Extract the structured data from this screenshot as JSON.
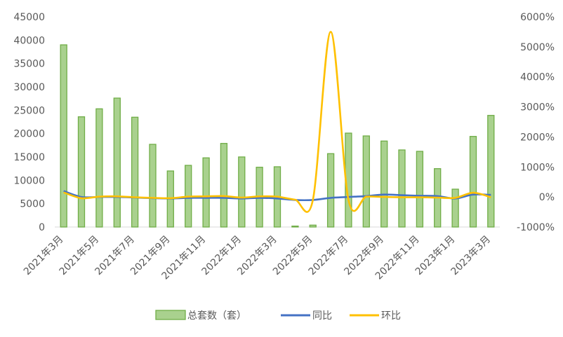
{
  "chart_data": {
    "type": "bar",
    "categories": [
      "2021年3月",
      "2021年4月",
      "2021年5月",
      "2021年6月",
      "2021年7月",
      "2021年8月",
      "2021年9月",
      "2021年10月",
      "2021年11月",
      "2021年12月",
      "2022年1月",
      "2022年2月",
      "2022年3月",
      "2022年4月",
      "2022年5月",
      "2022年6月",
      "2022年7月",
      "2022年8月",
      "2022年9月",
      "2022年10月",
      "2022年11月",
      "2022年12月",
      "2023年1月",
      "2023年2月",
      "2023年3月"
    ],
    "x_tick_labels": [
      "2021年3月",
      "2021年5月",
      "2021年7月",
      "2021年9月",
      "2021年11月",
      "2022年1月",
      "2022年3月",
      "2022年5月",
      "2022年7月",
      "2022年9月",
      "2022年11月",
      "2023年1月",
      "2023年3月"
    ],
    "series": [
      {
        "name": "总套数（套）",
        "type": "bar",
        "axis": "left",
        "color": "#a9d18e",
        "border": "#70ad47",
        "values": [
          39000,
          23600,
          25300,
          27600,
          23500,
          17700,
          12000,
          13200,
          14800,
          17900,
          15000,
          12800,
          12900,
          200,
          400,
          15700,
          20100,
          19500,
          18400,
          16500,
          16200,
          12500,
          8100,
          19400,
          23900
        ]
      },
      {
        "name": "同比",
        "type": "line",
        "axis": "right",
        "color": "#4472c4",
        "values": [
          200,
          0,
          0,
          0,
          -20,
          -40,
          -50,
          -30,
          -30,
          -30,
          -50,
          -30,
          -50,
          -100,
          -100,
          -30,
          0,
          30,
          80,
          60,
          40,
          30,
          -50,
          80,
          70
        ]
      },
      {
        "name": "环比",
        "type": "line",
        "axis": "right",
        "color": "#ffc000",
        "values": [
          150,
          -40,
          10,
          20,
          -10,
          -30,
          -40,
          10,
          20,
          30,
          -20,
          20,
          10,
          -90,
          -100,
          5500,
          -100,
          10,
          0,
          -10,
          -10,
          -20,
          -30,
          140,
          -10
        ]
      }
    ],
    "y_left": {
      "min": 0,
      "max": 45000,
      "ticks": [
        "0",
        "5000",
        "10000",
        "15000",
        "20000",
        "25000",
        "30000",
        "35000",
        "40000",
        "45000"
      ]
    },
    "y_right": {
      "min": -1000,
      "max": 6000,
      "ticks": [
        "-1000%",
        "0%",
        "1000%",
        "2000%",
        "3000%",
        "4000%",
        "5000%",
        "6000%"
      ]
    },
    "legend_position": "bottom",
    "grid": false
  }
}
